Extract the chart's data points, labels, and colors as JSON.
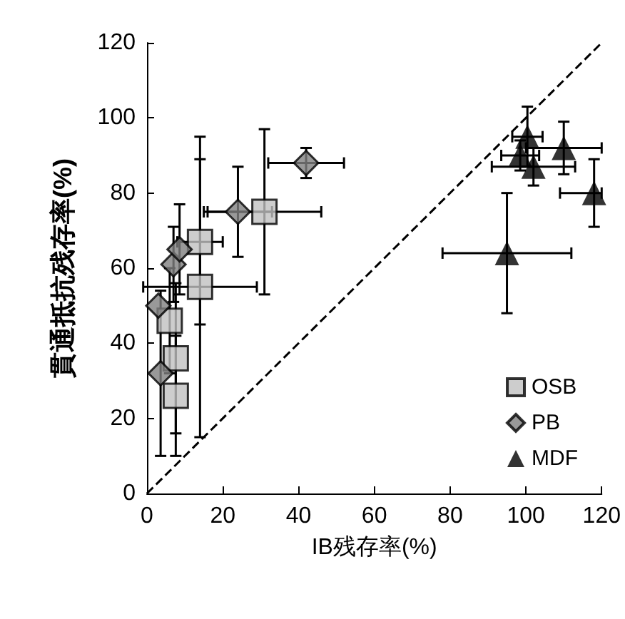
{
  "chart_data": {
    "type": "scatter",
    "xlabel": "IB残存率(%)",
    "ylabel": "貫通抵抗残存率(%)",
    "xlim": [
      0,
      120
    ],
    "ylim": [
      0,
      120
    ],
    "xticks": [
      0,
      20,
      40,
      60,
      80,
      100,
      120
    ],
    "yticks": [
      0,
      20,
      40,
      60,
      80,
      100,
      120
    ],
    "grid": false,
    "legend": "bottom right",
    "series": [
      {
        "name": "OSB",
        "color": "#c0c0c0",
        "marker": "square",
        "x": [
          6,
          7.6,
          7.6,
          14,
          14,
          31
        ],
        "values": [
          46,
          36,
          26,
          55,
          67,
          75
        ],
        "errors": [
          14,
          20,
          16,
          40,
          22,
          22
        ],
        "xerrors": [
          null,
          null,
          null,
          15,
          6,
          15
        ]
      },
      {
        "name": "PB",
        "color": "#808080",
        "marker": "diamond",
        "x": [
          3,
          3.6,
          7,
          8.6,
          24,
          42
        ],
        "values": [
          50,
          32,
          61,
          65,
          75,
          88
        ],
        "errors": [
          null,
          22,
          10,
          12,
          12,
          4
        ],
        "xerrors": [
          null,
          null,
          null,
          null,
          9,
          10
        ]
      },
      {
        "name": "MDF",
        "color": "#000000",
        "marker": "triangle",
        "x": [
          95,
          98.5,
          100.4,
          102,
          110,
          118
        ],
        "values": [
          64,
          90,
          95,
          87,
          92,
          80
        ],
        "errors": [
          16,
          4,
          8,
          5,
          7,
          9
        ],
        "xerrors": [
          17,
          5,
          4,
          11,
          10,
          [
            109,
            120
          ]
        ]
      },
      {
        "type": "line",
        "color": "#000000",
        "line_style": "dashed",
        "marker": "none",
        "x": [
          0,
          120
        ],
        "values": [
          0,
          120
        ]
      }
    ]
  }
}
